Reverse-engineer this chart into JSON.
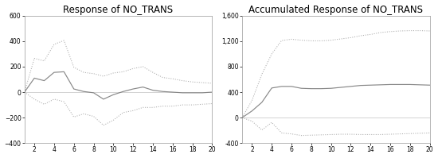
{
  "left_title": "Response of NO_TRANS",
  "right_title": "Accumulated Response of NO_TRANS",
  "x": [
    1,
    2,
    3,
    4,
    5,
    6,
    7,
    8,
    9,
    10,
    11,
    12,
    13,
    14,
    15,
    16,
    17,
    18,
    19,
    20
  ],
  "left_center": [
    0,
    110,
    90,
    155,
    160,
    25,
    5,
    -5,
    -55,
    -20,
    5,
    25,
    40,
    15,
    5,
    0,
    -5,
    -5,
    -5,
    0
  ],
  "left_upper": [
    0,
    265,
    245,
    375,
    405,
    195,
    155,
    145,
    125,
    150,
    160,
    185,
    200,
    155,
    115,
    105,
    90,
    80,
    75,
    70
  ],
  "left_lower": [
    0,
    -55,
    -95,
    -55,
    -75,
    -195,
    -170,
    -190,
    -260,
    -220,
    -160,
    -145,
    -120,
    -120,
    -110,
    -110,
    -100,
    -100,
    -95,
    -90
  ],
  "right_center": [
    0,
    105,
    240,
    465,
    490,
    490,
    460,
    455,
    455,
    460,
    475,
    490,
    505,
    510,
    515,
    520,
    520,
    520,
    515,
    510
  ],
  "right_upper": [
    0,
    270,
    680,
    1000,
    1210,
    1230,
    1215,
    1205,
    1205,
    1215,
    1235,
    1255,
    1285,
    1305,
    1335,
    1350,
    1360,
    1365,
    1365,
    1360
  ],
  "right_lower": [
    0,
    -55,
    -195,
    -75,
    -240,
    -255,
    -280,
    -275,
    -270,
    -265,
    -260,
    -260,
    -265,
    -265,
    -265,
    -260,
    -255,
    -250,
    -245,
    -240
  ],
  "left_ylim": [
    -400,
    600
  ],
  "right_ylim": [
    -400,
    1600
  ],
  "left_yticks": [
    -400,
    -200,
    0,
    200,
    400,
    600
  ],
  "right_yticks": [
    -400,
    0,
    400,
    800,
    1200,
    1600
  ],
  "xticks": [
    2,
    4,
    6,
    8,
    10,
    12,
    14,
    16,
    18,
    20
  ],
  "line_color": "#888888",
  "dash_color": "#aaaaaa",
  "zero_color": "#cccccc",
  "bg_color": "#ffffff",
  "title_fontsize": 8.5
}
